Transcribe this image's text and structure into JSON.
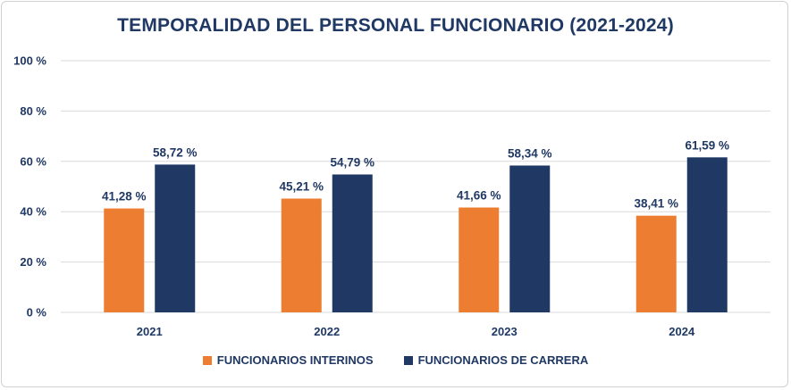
{
  "chart_data": {
    "type": "bar",
    "title": "TEMPORALIDAD DEL PERSONAL FUNCIONARIO (2021-2024)",
    "categories": [
      "2021",
      "2022",
      "2023",
      "2024"
    ],
    "series": [
      {
        "name": "FUNCIONARIOS INTERINOS",
        "color": "#ed7d31",
        "values": [
          41.28,
          45.21,
          41.66,
          38.41
        ],
        "labels": [
          "41,28 %",
          "45,21 %",
          "41,66 %",
          "38,41 %"
        ]
      },
      {
        "name": "FUNCIONARIOS DE CARRERA",
        "color": "#1f3864",
        "values": [
          58.72,
          54.79,
          58.34,
          61.59
        ],
        "labels": [
          "58,72 %",
          "54,79 %",
          "58,34 %",
          "61,59 %"
        ]
      }
    ],
    "ylim": [
      0,
      100
    ],
    "yticks": [
      0,
      20,
      40,
      60,
      80,
      100
    ],
    "ytick_labels": [
      "0 %",
      "20 %",
      "40 %",
      "60 %",
      "80 %",
      "100 %"
    ],
    "xlabel": "",
    "ylabel": "",
    "grid": true,
    "legend": "bottom"
  }
}
